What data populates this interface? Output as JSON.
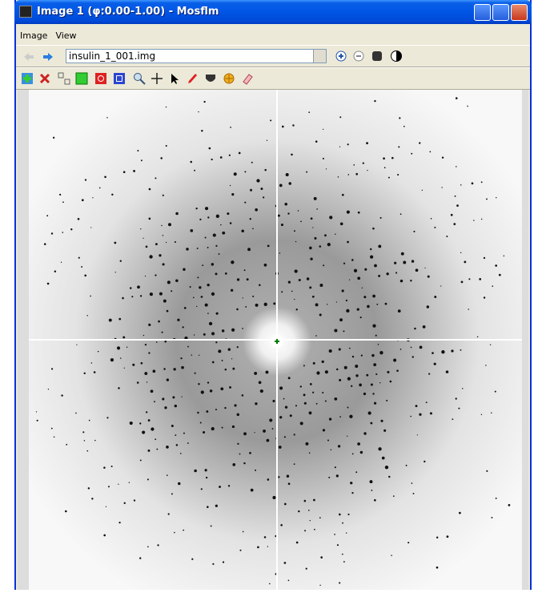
{
  "window": {
    "title": "Image 1 (φ:0.00-1.00) - Mosflm"
  },
  "menu": [
    "Image",
    "View"
  ],
  "toolbar": {
    "file": "insulin_1_001.img"
  }
}
